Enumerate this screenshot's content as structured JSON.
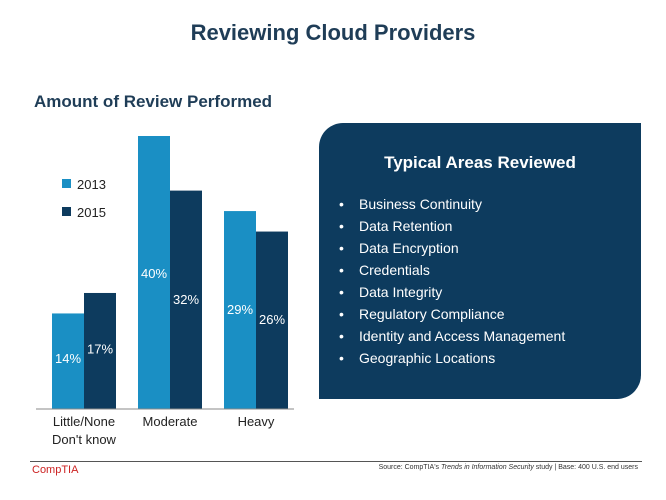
{
  "slide_title": "Reviewing Cloud Providers",
  "panel": {
    "title": "Typical Areas Reviewed",
    "items": [
      "Business Continuity",
      "Data Retention",
      "Data Encryption",
      "Credentials",
      "Data Integrity",
      "Regulatory Compliance",
      "Identity and Access Management",
      "Geographic Locations"
    ]
  },
  "footer": {
    "source_prefix": "Source: CompTIA's ",
    "source_title": "Trends in Information Security",
    "source_suffix": " study | Base: 400 U.S. end users",
    "logo": "CompTIA"
  },
  "colors": {
    "series_2013": "#1a8fc4",
    "series_2015": "#0d3b5e",
    "panel": "#0d3b5e"
  },
  "chart_data": {
    "type": "bar",
    "title": "Amount of Review Performed",
    "categories": [
      [
        "Little/None",
        "Don't know"
      ],
      [
        "Moderate"
      ],
      [
        "Heavy"
      ]
    ],
    "series": [
      {
        "name": "2013",
        "values": [
          14,
          40,
          29
        ]
      },
      {
        "name": "2015",
        "values": [
          17,
          32,
          26
        ]
      }
    ],
    "value_suffix": "%",
    "ylim": [
      0,
      40
    ],
    "legend": "top-left"
  }
}
